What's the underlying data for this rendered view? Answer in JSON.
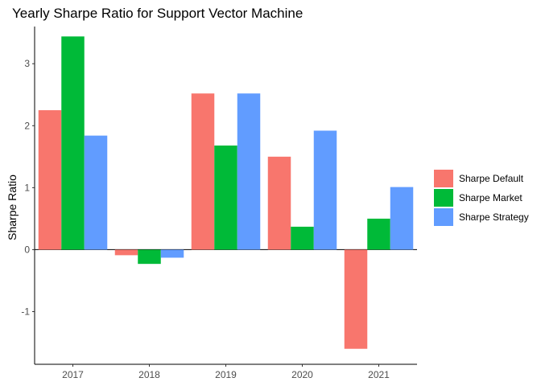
{
  "chart_data": {
    "type": "bar",
    "title": "Yearly Sharpe Ratio for Support Vector Machine",
    "xlabel": "",
    "ylabel": "Sharpe Ratio",
    "categories": [
      "2017",
      "2018",
      "2019",
      "2020",
      "2021"
    ],
    "series": [
      {
        "name": "Sharpe Default",
        "color": "#F8766D",
        "values": [
          2.25,
          -0.09,
          2.52,
          1.5,
          -1.6
        ]
      },
      {
        "name": "Sharpe Market",
        "color": "#00BA38",
        "values": [
          3.44,
          -0.23,
          1.68,
          0.37,
          0.5
        ]
      },
      {
        "name": "Sharpe Strategy",
        "color": "#619CFF",
        "values": [
          1.84,
          -0.13,
          2.52,
          1.92,
          1.01
        ]
      }
    ],
    "ylim": [
      -1.85,
      3.6
    ],
    "yticks": [
      -1,
      0,
      1,
      2,
      3
    ],
    "grid": false,
    "zero_line": true,
    "legend_position": "right"
  }
}
